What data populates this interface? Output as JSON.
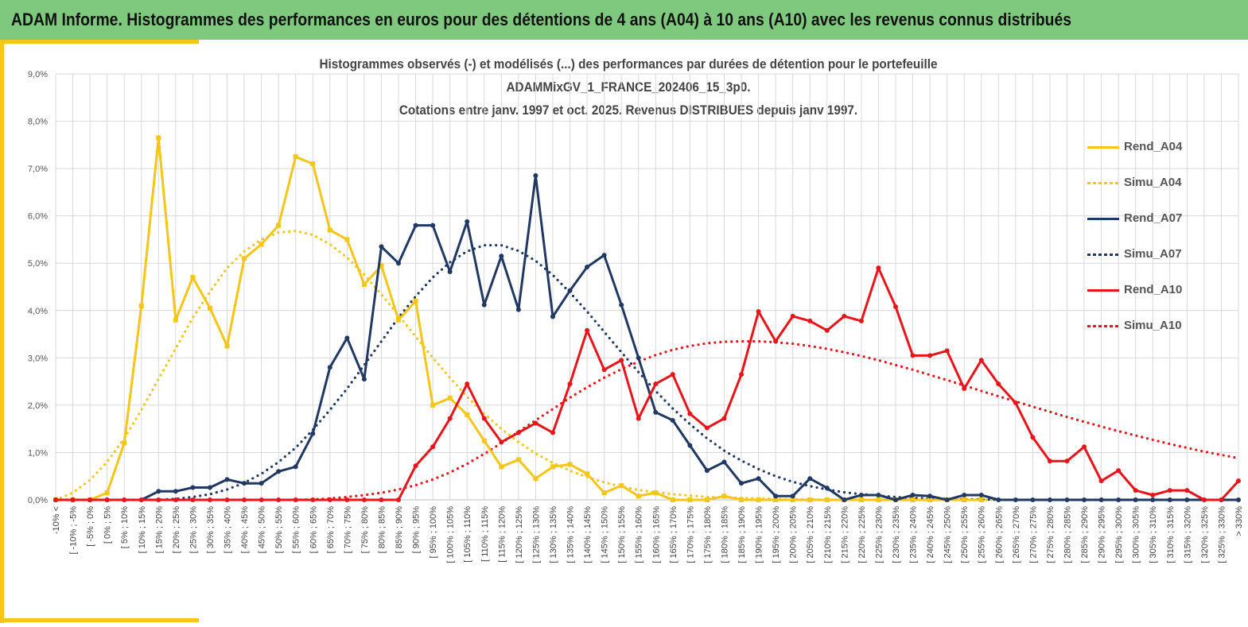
{
  "header": {
    "title": "ADAM Informe. Histogrammes des performances en euros pour des détentions de 4 ans (A04) à 10 ans (A10) avec les revenus connus distribués"
  },
  "colors": {
    "banner": "#7fc97f",
    "accent": "#f5c518",
    "A04": "#f5c518",
    "A07": "#1f3864",
    "A10": "#e8141a",
    "grid": "#d9d9d9"
  },
  "chart_data": {
    "type": "line",
    "title_lines": [
      "Histogrammes observés (-) et modélisés (...) des performances par durées de détention pour le portefeuille",
      "ADAMMixGV_1_FRANCE_202406_15_3p0.",
      "Cotations entre janv. 1997 et oct. 2025. Revenus DISTRIBUES depuis janv 1997."
    ],
    "xlabel": "",
    "ylabel": "",
    "ylim": [
      0,
      9
    ],
    "y_ticks": [
      "0,0%",
      "1,0%",
      "2,0%",
      "3,0%",
      "4,0%",
      "5,0%",
      "6,0%",
      "7,0%",
      "8,0%",
      "9,0%"
    ],
    "grid": true,
    "legend_position": "right",
    "categories": [
      "-10% <",
      "[ -10% ; -5%",
      "[ -5% ; 0%",
      "[ 0% ; 5%",
      "[ 5% ; 10%",
      "[ 10% ; 15%",
      "[ 15% ; 20%",
      "[ 20% ; 25%",
      "[ 25% ; 30%",
      "[ 30% ; 35%",
      "[ 35% ; 40%",
      "[ 40% ; 45%",
      "[ 45% ; 50%",
      "[ 50% ; 55%",
      "[ 55% ; 60%",
      "[ 60% ; 65%",
      "[ 65% ; 70%",
      "[ 70% ; 75%",
      "[ 75% ; 80%",
      "[ 80% ; 85%",
      "[ 85% ; 90%",
      "[ 90% ; 95%",
      "[ 95% ; 100%",
      "[ 100% ; 105%",
      "[ 105% ; 110%",
      "[ 110% ; 115%",
      "[ 115% ; 120%",
      "[ 120% ; 125%",
      "[ 125% ; 130%",
      "[ 130% ; 135%",
      "[ 135% ; 140%",
      "[ 140% ; 145%",
      "[ 145% ; 150%",
      "[ 150% ; 155%",
      "[ 155% ; 160%",
      "[ 160% ; 165%",
      "[ 165% ; 170%",
      "[ 170% ; 175%",
      "[ 175% ; 180%",
      "[ 180% ; 185%",
      "[ 185% ; 190%",
      "[ 190% ; 195%",
      "[ 195% ; 200%",
      "[ 200% ; 205%",
      "[ 205% ; 210%",
      "[ 210% ; 215%",
      "[ 215% ; 220%",
      "[ 220% ; 225%",
      "[ 225% ; 230%",
      "[ 230% ; 235%",
      "[ 235% ; 240%",
      "[ 240% ; 245%",
      "[ 245% ; 250%",
      "[ 250% ; 255%",
      "[ 255% ; 260%",
      "[ 260% ; 265%",
      "[ 265% ; 270%",
      "[ 270% ; 275%",
      "[ 275% ; 280%",
      "[ 280% ; 285%",
      "[ 285% ; 290%",
      "[ 290% ; 295%",
      "[ 295% ; 300%",
      "[ 300% ; 305%",
      "[ 305% ; 310%",
      "[ 310% ; 315%",
      "[ 315% ; 320%",
      "[ 320% ; 325%",
      "[ 325% ; 330%",
      "> 330%"
    ],
    "series": [
      {
        "name": "Rend_A04",
        "color": "#f5c518",
        "style": "solid",
        "marker": "square",
        "values": [
          0,
          0,
          0,
          0.15,
          1.2,
          4.1,
          7.65,
          3.8,
          4.7,
          4.05,
          3.25,
          5.1,
          5.4,
          5.8,
          7.25,
          7.1,
          5.7,
          5.5,
          4.55,
          4.95,
          3.8,
          4.2,
          2.0,
          2.15,
          1.8,
          1.25,
          0.7,
          0.85,
          0.45,
          0.7,
          0.75,
          0.55,
          0.15,
          0.3,
          0.08,
          0.15,
          0,
          0,
          0,
          0.08,
          0,
          0,
          0,
          0,
          0,
          0,
          0,
          0,
          0,
          0,
          0,
          0,
          0,
          0,
          0,
          null,
          null,
          null,
          null,
          null,
          null,
          null,
          null,
          null,
          null,
          null,
          null,
          null,
          null,
          null
        ]
      },
      {
        "name": "Simu_A04",
        "color": "#f5c518",
        "style": "dotted",
        "values": [
          0,
          0.15,
          0.42,
          0.8,
          1.3,
          1.9,
          2.55,
          3.2,
          3.85,
          4.4,
          4.9,
          5.25,
          5.5,
          5.65,
          5.68,
          5.6,
          5.4,
          5.12,
          4.76,
          4.34,
          3.9,
          3.45,
          3.0,
          2.58,
          2.18,
          1.82,
          1.5,
          1.22,
          0.98,
          0.78,
          0.62,
          0.48,
          0.37,
          0.28,
          0.21,
          0.16,
          0.12,
          0.09,
          0.06,
          0.05,
          0.04,
          0.03,
          0.02,
          0.01,
          0.01,
          0,
          0,
          0,
          0,
          0,
          0,
          0,
          0,
          0,
          0,
          0,
          0,
          0,
          0,
          0,
          0,
          0,
          0,
          0,
          0,
          0,
          0,
          0,
          0,
          0
        ]
      },
      {
        "name": "Rend_A07",
        "color": "#1f3864",
        "style": "solid",
        "marker": "circle",
        "values": [
          0,
          0,
          0,
          0,
          0,
          0,
          0.18,
          0.18,
          0.26,
          0.26,
          0.43,
          0.35,
          0.35,
          0.6,
          0.7,
          1.4,
          2.8,
          3.42,
          2.55,
          5.35,
          5.0,
          5.8,
          5.8,
          4.82,
          5.88,
          4.12,
          5.15,
          4.02,
          6.85,
          3.87,
          4.42,
          4.92,
          5.17,
          4.12,
          3.0,
          1.85,
          1.68,
          1.15,
          0.62,
          0.8,
          0.35,
          0.45,
          0.08,
          0.08,
          0.45,
          0.25,
          0,
          0.1,
          0.1,
          0,
          0.1,
          0.08,
          0,
          0.1,
          0.1,
          0,
          0,
          0,
          0,
          0,
          0,
          0,
          0,
          0,
          0,
          0,
          0,
          0,
          0,
          0
        ]
      },
      {
        "name": "Simu_A07",
        "color": "#1f3864",
        "style": "dotted",
        "values": [
          0,
          0,
          0,
          0,
          0,
          0,
          0,
          0.02,
          0.06,
          0.12,
          0.22,
          0.36,
          0.55,
          0.8,
          1.1,
          1.48,
          1.9,
          2.35,
          2.85,
          3.35,
          3.85,
          4.3,
          4.7,
          5.02,
          5.25,
          5.38,
          5.38,
          5.26,
          5.05,
          4.75,
          4.38,
          3.98,
          3.55,
          3.12,
          2.7,
          2.3,
          1.93,
          1.6,
          1.3,
          1.04,
          0.83,
          0.65,
          0.5,
          0.38,
          0.29,
          0.22,
          0.16,
          0.12,
          0.09,
          0.06,
          0.04,
          0.03,
          0.02,
          0.01,
          0.01,
          0,
          0,
          0,
          0,
          0,
          0,
          0,
          0,
          0,
          0,
          0,
          0,
          0,
          0,
          0
        ]
      },
      {
        "name": "Rend_A10",
        "color": "#e8141a",
        "style": "solid",
        "marker": "circle",
        "values": [
          0,
          0,
          0,
          0,
          0,
          0,
          0,
          0,
          0,
          0,
          0,
          0,
          0,
          0,
          0,
          0,
          0,
          0,
          0,
          0,
          0,
          0.72,
          1.12,
          1.72,
          2.45,
          1.72,
          1.22,
          1.42,
          1.62,
          1.42,
          2.45,
          3.58,
          2.75,
          2.95,
          1.72,
          2.45,
          2.65,
          1.82,
          1.52,
          1.72,
          2.65,
          3.98,
          3.35,
          3.88,
          3.78,
          3.58,
          3.88,
          3.78,
          4.9,
          4.08,
          3.05,
          3.05,
          3.15,
          2.35,
          2.95,
          2.45,
          2.05,
          1.32,
          0.82,
          0.82,
          1.12,
          0.4,
          0.62,
          0.2,
          0.1,
          0.2,
          0.2,
          0,
          0,
          0.4
        ]
      },
      {
        "name": "Simu_A10",
        "color": "#e8141a",
        "style": "dotted",
        "values": [
          0,
          0,
          0,
          0,
          0,
          0,
          0,
          0,
          0,
          0,
          0,
          0,
          0,
          0,
          0,
          0.01,
          0.03,
          0.06,
          0.1,
          0.15,
          0.22,
          0.31,
          0.43,
          0.58,
          0.76,
          0.97,
          1.2,
          1.44,
          1.68,
          1.92,
          2.16,
          2.38,
          2.58,
          2.76,
          2.92,
          3.06,
          3.17,
          3.25,
          3.31,
          3.34,
          3.35,
          3.35,
          3.33,
          3.3,
          3.25,
          3.19,
          3.12,
          3.04,
          2.95,
          2.85,
          2.75,
          2.64,
          2.53,
          2.42,
          2.3,
          2.19,
          2.08,
          1.97,
          1.86,
          1.75,
          1.65,
          1.55,
          1.45,
          1.36,
          1.27,
          1.18,
          1.1,
          1.02,
          0.95,
          0.88
        ]
      }
    ]
  }
}
